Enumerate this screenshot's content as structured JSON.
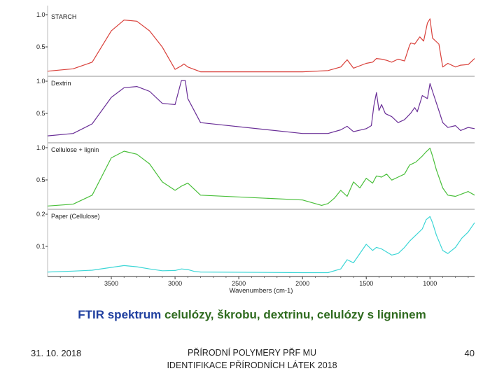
{
  "caption": {
    "part1": "FTIR spektrum",
    "part2": " celulózy,  škrobu, dextrinu, celulózy s ligninem"
  },
  "footer": {
    "date": "31. 10. 2018",
    "center": "PŘÍRODNÍ POLYMERY PŘF MU IDENTIFIKACE PŘÍRODNÍCH LÁTEK 2018",
    "page": "40"
  },
  "chart_data": {
    "type": "line",
    "xlabel": "Wavenumbers (cm-1)",
    "xlim": [
      4000,
      650
    ],
    "x_ticks": [
      "3500",
      "3000",
      "2500",
      "2000",
      "1500",
      "1000"
    ],
    "grid": false,
    "panels": [
      {
        "name": "STARCH",
        "color": "#d9403a",
        "ylim": [
          0,
          1.0
        ],
        "y_ticks": [
          "1.0",
          "0.5"
        ],
        "x": [
          4000,
          3800,
          3650,
          3500,
          3400,
          3300,
          3200,
          3100,
          3000,
          2950,
          2930,
          2900,
          2800,
          2000,
          1800,
          1700,
          1650,
          1600,
          1500,
          1450,
          1420,
          1380,
          1340,
          1300,
          1250,
          1200,
          1160,
          1150,
          1120,
          1080,
          1050,
          1020,
          1000,
          980,
          930,
          900,
          860,
          800,
          760,
          700,
          650
        ],
        "y": [
          0.05,
          0.09,
          0.2,
          0.72,
          0.9,
          0.88,
          0.72,
          0.45,
          0.08,
          0.14,
          0.17,
          0.12,
          0.04,
          0.04,
          0.06,
          0.12,
          0.24,
          0.1,
          0.18,
          0.2,
          0.26,
          0.25,
          0.23,
          0.2,
          0.25,
          0.22,
          0.48,
          0.52,
          0.5,
          0.62,
          0.55,
          0.85,
          0.92,
          0.6,
          0.5,
          0.12,
          0.18,
          0.12,
          0.15,
          0.16,
          0.26
        ]
      },
      {
        "name": "Dextrin",
        "color": "#6a2f97",
        "ylim": [
          0,
          1.0
        ],
        "y_ticks": [
          "1.0",
          "0.5"
        ],
        "x": [
          4000,
          3800,
          3650,
          3500,
          3400,
          3300,
          3200,
          3100,
          3000,
          2950,
          2920,
          2900,
          2800,
          2000,
          1800,
          1700,
          1650,
          1600,
          1500,
          1460,
          1440,
          1420,
          1400,
          1380,
          1350,
          1300,
          1250,
          1200,
          1150,
          1120,
          1100,
          1060,
          1020,
          1000,
          980,
          930,
          900,
          860,
          800,
          760,
          700,
          650
        ],
        "y": [
          0.08,
          0.12,
          0.28,
          0.72,
          0.88,
          0.9,
          0.82,
          0.62,
          0.6,
          1.0,
          1.0,
          0.7,
          0.3,
          0.12,
          0.12,
          0.18,
          0.24,
          0.15,
          0.2,
          0.25,
          0.58,
          0.8,
          0.5,
          0.6,
          0.45,
          0.4,
          0.3,
          0.35,
          0.46,
          0.55,
          0.48,
          0.75,
          0.7,
          0.95,
          0.82,
          0.5,
          0.3,
          0.22,
          0.25,
          0.17,
          0.22,
          0.2
        ]
      },
      {
        "name": "Cellulose + lignin",
        "color": "#49bf3a",
        "ylim": [
          0,
          1.0
        ],
        "y_ticks": [
          "1.0",
          "0.5"
        ],
        "x": [
          4000,
          3800,
          3650,
          3500,
          3400,
          3300,
          3200,
          3100,
          3000,
          2950,
          2900,
          2850,
          2800,
          2000,
          1850,
          1800,
          1750,
          1700,
          1650,
          1600,
          1550,
          1500,
          1450,
          1420,
          1380,
          1340,
          1300,
          1250,
          1200,
          1160,
          1110,
          1060,
          1030,
          1000,
          980,
          950,
          900,
          860,
          800,
          750,
          700,
          650
        ],
        "y": [
          0.02,
          0.05,
          0.2,
          0.82,
          0.93,
          0.88,
          0.72,
          0.42,
          0.28,
          0.35,
          0.4,
          0.3,
          0.2,
          0.12,
          0.03,
          0.06,
          0.15,
          0.28,
          0.18,
          0.42,
          0.32,
          0.48,
          0.4,
          0.52,
          0.5,
          0.55,
          0.45,
          0.5,
          0.55,
          0.7,
          0.75,
          0.85,
          0.92,
          0.98,
          0.85,
          0.62,
          0.32,
          0.2,
          0.18,
          0.22,
          0.26,
          0.2
        ]
      },
      {
        "name": "Paper (Cellulose)",
        "color": "#3cd6d6",
        "ylim": [
          0,
          0.2
        ],
        "y_ticks": [
          "0.2",
          "0.1"
        ],
        "x": [
          4000,
          3800,
          3650,
          3500,
          3400,
          3300,
          3200,
          3100,
          3000,
          2950,
          2900,
          2850,
          2800,
          2000,
          1800,
          1700,
          1650,
          1600,
          1500,
          1450,
          1420,
          1380,
          1340,
          1300,
          1250,
          1200,
          1160,
          1110,
          1060,
          1030,
          1000,
          980,
          950,
          900,
          860,
          800,
          750,
          700,
          650
        ],
        "y": [
          0.01,
          0.013,
          0.016,
          0.025,
          0.031,
          0.027,
          0.02,
          0.014,
          0.015,
          0.02,
          0.018,
          0.012,
          0.01,
          0.008,
          0.008,
          0.02,
          0.05,
          0.04,
          0.1,
          0.08,
          0.09,
          0.085,
          0.075,
          0.065,
          0.07,
          0.09,
          0.11,
          0.13,
          0.15,
          0.18,
          0.19,
          0.17,
          0.13,
          0.08,
          0.07,
          0.09,
          0.12,
          0.14,
          0.17
        ]
      }
    ]
  }
}
